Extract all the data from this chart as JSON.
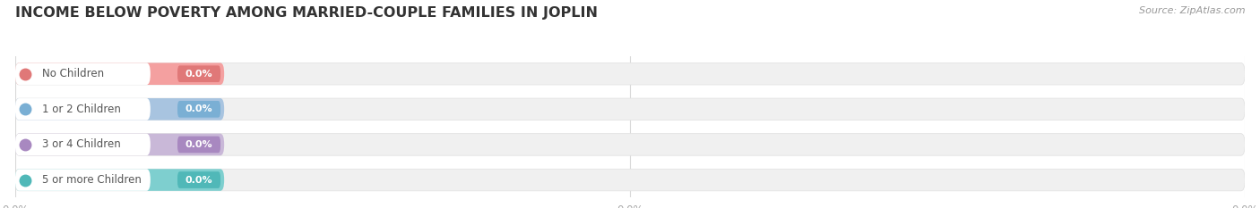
{
  "title": "INCOME BELOW POVERTY AMONG MARRIED-COUPLE FAMILIES IN JOPLIN",
  "source": "Source: ZipAtlas.com",
  "categories": [
    "No Children",
    "1 or 2 Children",
    "3 or 4 Children",
    "5 or more Children"
  ],
  "values": [
    0.0,
    0.0,
    0.0,
    0.0
  ],
  "bar_colors": [
    "#f4a0a0",
    "#a8c4e0",
    "#c9b8d8",
    "#7ecfcf"
  ],
  "dot_colors": [
    "#e07878",
    "#7aafd4",
    "#a888c0",
    "#50b8b8"
  ],
  "background_color": "#ffffff",
  "bar_bg_color": "#f0f0f0",
  "bar_bg_border": "#e0e0e0",
  "title_fontsize": 11.5,
  "label_fontsize": 8.5,
  "source_fontsize": 8,
  "tick_fontsize": 8.5,
  "tick_color": "#aaaaaa",
  "title_color": "#333333",
  "source_color": "#999999",
  "label_color": "#555555",
  "value_color": "#ffffff",
  "grid_color": "#d8d8d8"
}
